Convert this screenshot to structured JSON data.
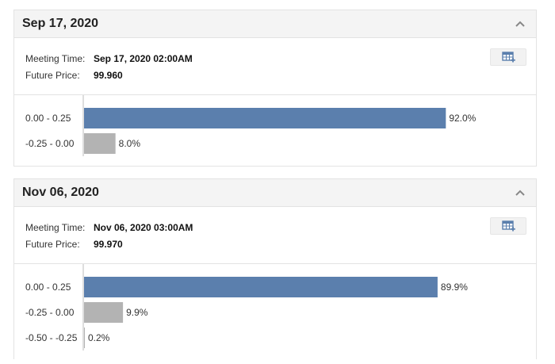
{
  "meetings": [
    {
      "date": "Sep 17, 2020",
      "meeting_time_label": "Meeting Time:",
      "meeting_time": "Sep 17, 2020 02:00AM",
      "future_price_label": "Future Price:",
      "future_price": "99.960",
      "chart_data": {
        "type": "bar",
        "orientation": "horizontal",
        "categories": [
          "0.00 - 0.25",
          "-0.25 - 0.00"
        ],
        "values": [
          92.0,
          8.0
        ],
        "value_labels": [
          "92.0%",
          "8.0%"
        ],
        "colors": [
          "#5b7fad",
          "#b3b3b3"
        ],
        "xlim": [
          0,
          100
        ]
      }
    },
    {
      "date": "Nov 06, 2020",
      "meeting_time_label": "Meeting Time:",
      "meeting_time": "Nov 06, 2020 03:00AM",
      "future_price_label": "Future Price:",
      "future_price": "99.970",
      "chart_data": {
        "type": "bar",
        "orientation": "horizontal",
        "categories": [
          "0.00 - 0.25",
          "-0.25 - 0.00",
          "-0.50 - -0.25"
        ],
        "values": [
          89.9,
          9.9,
          0.2
        ],
        "value_labels": [
          "89.9%",
          "9.9%",
          "0.2%"
        ],
        "colors": [
          "#5b7fad",
          "#b3b3b3",
          "#b3b3b3"
        ],
        "xlim": [
          0,
          100
        ]
      }
    }
  ],
  "icons": {
    "collapse": "chevron-up-icon",
    "calendar": "calendar-add-icon"
  }
}
